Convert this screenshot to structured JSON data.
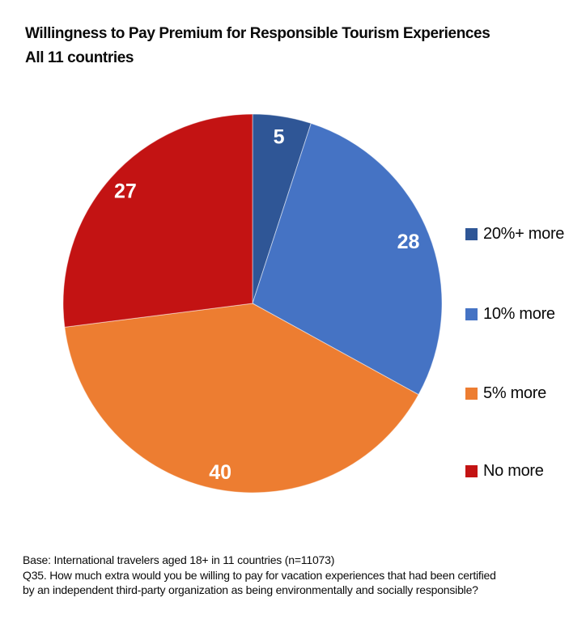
{
  "header": {
    "title_line1": "Willingness to Pay Premium for Responsible Tourism Experiences",
    "title_line2": "All 11 countries"
  },
  "chart_data": {
    "type": "pie",
    "title": "Willingness to Pay Premium for Responsible Tourism Experiences",
    "subtitle": "All 11 countries",
    "categories": [
      "20%+ more",
      "10% more",
      "5% more",
      "No more"
    ],
    "values": [
      5,
      28,
      40,
      27
    ],
    "colors": [
      "#2F5696",
      "#4573C4",
      "#ED7D31",
      "#C31313"
    ],
    "data_label_color": "#FFFFFF",
    "start_angle_deg": 0,
    "direction": "clockwise",
    "legend_position": "right",
    "data_labels": "inside",
    "label_radius_fractions": [
      0.89,
      0.885,
      0.91,
      0.895
    ]
  },
  "footnote": {
    "lines": [
      "Base: International travelers aged 18+ in 11 countries (n=11073)",
      "Q35. How much extra would you be willing to pay for vacation experiences that had been certified",
      "by an independent third-party organization as being environmentally and socially responsible?"
    ]
  }
}
